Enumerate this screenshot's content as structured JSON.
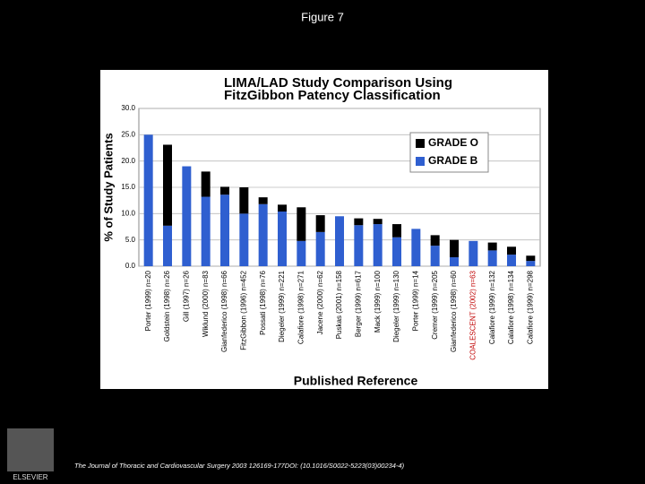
{
  "slide_title": "Figure 7",
  "footer": "The Journal of Thoracic and Cardiovascular Surgery 2003 126169-177DOI: (10.1016/S0022-5223(03)00234-4)",
  "publisher": "ELSEVIER",
  "chart_data": {
    "type": "stacked_bar",
    "title": [
      "LIMA/LAD Study Comparison Using",
      "FitzGibbon Patency Classification"
    ],
    "y_label": "% of Study Patients",
    "x_label": "Published Reference",
    "categories": [
      "Porter (1999) n=20",
      "Goldstein (1998) n=26",
      "Gill (1997) n=26",
      "Wiklund (2000) n=83",
      "Gianfederico (1998) n=66",
      "FitzGibbon (1996) n=452",
      "Possati (1998) n=76",
      "Diegeler (1999) n=221",
      "Calafiore (1998) n=271",
      "Jacene (2000) n=62",
      "Puskas (2001) n=158",
      "Berger (1999) n=617",
      "Mack (1999) n=100",
      "Diegeler (1999) n=130",
      "Porter (1999) n=14",
      "Cremer (1999) n=205",
      "Gianfederico (1998) n=60",
      "COALESCENT (2002) n=63",
      "Calafiore (1999) n=132",
      "Calafiore (1998) n=134",
      "Calafiore (1999) n=298"
    ],
    "series": [
      {
        "name": "GRADE B",
        "color": "#2f5fd0",
        "values": [
          25,
          7.7,
          19,
          13.2,
          13.6,
          10,
          11.8,
          10.4,
          4.8,
          6.5,
          9.5,
          7.8,
          8,
          5.5,
          7.1,
          3.9,
          1.7,
          4.8,
          3,
          2.2,
          1
        ]
      },
      {
        "name": "GRADE O",
        "color": "#000000",
        "values": [
          0,
          15.4,
          0,
          4.8,
          1.5,
          5,
          1.3,
          1.3,
          6.4,
          3.2,
          0,
          1.3,
          1,
          2.5,
          0,
          2,
          3.3,
          0,
          1.5,
          1.5,
          1
        ]
      }
    ],
    "highlight": {
      "index": 17,
      "color": "#c00000"
    },
    "ylim": [
      0,
      30
    ],
    "yticks": [
      {
        "value": 0,
        "label": "0.0"
      },
      {
        "value": 5,
        "label": "5.0"
      },
      {
        "value": 10,
        "label": "10.0"
      },
      {
        "value": 15,
        "label": "15.0"
      },
      {
        "value": 20,
        "label": "20.0"
      },
      {
        "value": 25,
        "label": "25.0"
      },
      {
        "value": 30,
        "label": "30.0"
      }
    ],
    "grid": true
  }
}
